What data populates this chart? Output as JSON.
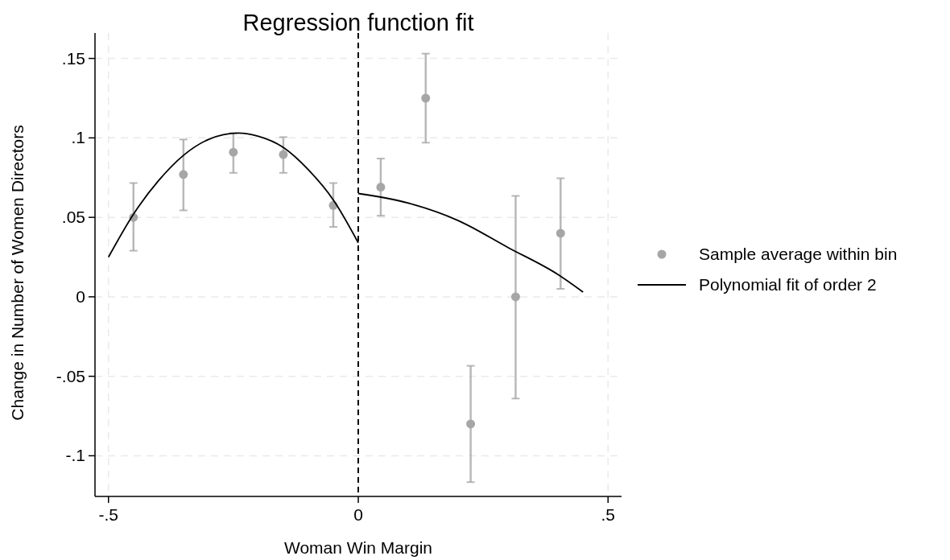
{
  "chart_data": {
    "type": "scatter",
    "title": "Regression function fit",
    "xlabel": "Woman Win Margin",
    "ylabel": "Change in Number of Women Directors",
    "xlim": [
      -0.527,
      0.527
    ],
    "ylim": [
      -0.1256,
      0.166
    ],
    "xticks": [
      {
        "value": -0.5,
        "label": "-.5"
      },
      0,
      {
        "value": 0.5,
        "label": ".5"
      }
    ],
    "yticks": [
      {
        "value": -0.1,
        "label": "-.1"
      },
      {
        "value": -0.05,
        "label": "-.05"
      },
      0,
      {
        "value": 0.05,
        "label": ".05"
      },
      {
        "value": 0.1,
        "label": ".1"
      },
      {
        "value": 0.15,
        "label": ".15"
      }
    ],
    "grid": true,
    "legend": "right",
    "ref_lines": [
      {
        "axis": "x",
        "value": 0,
        "color": "#000000",
        "line_style": "dashed"
      }
    ],
    "series": [
      {
        "name": "Sample average within bin",
        "marker": "circle",
        "color": "#a6a6a6",
        "x": [
          -0.45,
          -0.35,
          -0.25,
          -0.15,
          -0.05,
          0.045,
          0.135,
          0.225,
          0.315,
          0.405
        ],
        "values": [
          0.05,
          0.077,
          0.091,
          0.0895,
          0.0575,
          0.069,
          0.125,
          -0.08,
          0,
          0.04
        ],
        "errors": [
          [
            0.029,
            0.0716
          ],
          [
            0.0544,
            0.099
          ],
          [
            0.078,
            0.103
          ],
          [
            0.078,
            0.1005
          ],
          [
            0.044,
            0.0716
          ],
          [
            0.051,
            0.087
          ],
          [
            0.097,
            0.153
          ],
          [
            -0.1166,
            -0.0434
          ],
          [
            -0.064,
            0.0635
          ],
          [
            0.005,
            0.0746
          ]
        ]
      },
      {
        "name": "Polynomial fit of order 2",
        "type": "line",
        "marker": "none",
        "color": "#000000",
        "x": [
          -0.5,
          -0.45,
          -0.4,
          -0.35,
          -0.3,
          -0.24,
          -0.2,
          -0.15,
          -0.1,
          -0.05,
          0
        ],
        "values": [
          0.025,
          0.052,
          0.073,
          0.089,
          0.099,
          0.103,
          0.101,
          0.094,
          0.08,
          0.061,
          0.034
        ]
      },
      {
        "type": "line",
        "marker": "none",
        "color": "#000000",
        "x": [
          0,
          0.1,
          0.2,
          0.3,
          0.4,
          0.45
        ],
        "values": [
          0.065,
          0.059,
          0.048,
          0.031,
          0.014,
          0.003
        ]
      }
    ]
  }
}
